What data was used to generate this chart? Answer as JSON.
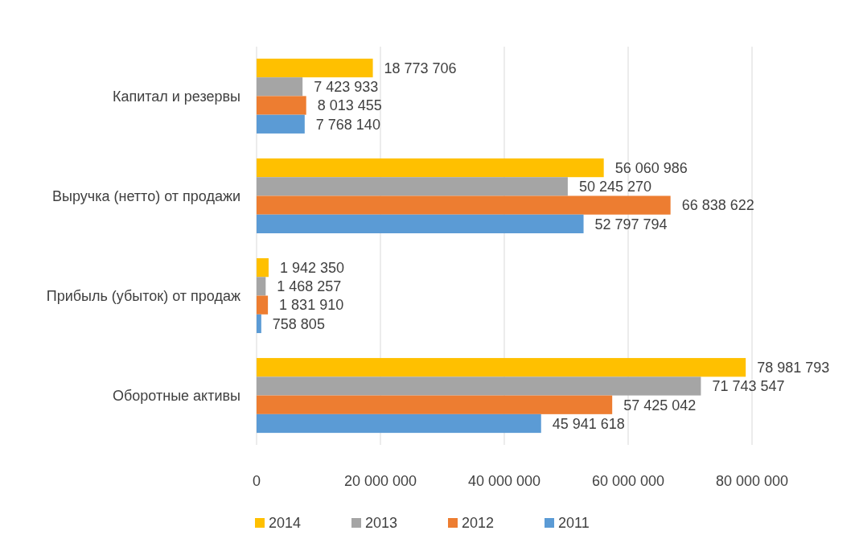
{
  "chart_data": {
    "type": "bar",
    "orientation": "horizontal",
    "categories": [
      "Капитал и резервы",
      "Выручка (нетто) от продажи",
      "Прибыль (убыток) от продаж",
      "Оборотные активы"
    ],
    "series": [
      {
        "name": "2014",
        "color": "#ffc000",
        "values": [
          18773706,
          56060986,
          1942350,
          78981793
        ],
        "value_labels": [
          "18 773 706",
          "56 060 986",
          "1 942 350",
          "78 981 793"
        ]
      },
      {
        "name": "2013",
        "color": "#a5a5a5",
        "values": [
          7423933,
          50245270,
          1468257,
          71743547
        ],
        "value_labels": [
          "7 423 933",
          "50 245 270",
          "1 468 257",
          "71 743 547"
        ]
      },
      {
        "name": "2012",
        "color": "#ed7d31",
        "values": [
          8013455,
          66838622,
          1831910,
          57425042
        ],
        "value_labels": [
          "8 013 455",
          "66 838 622",
          "1 831 910",
          "57 425 042"
        ]
      },
      {
        "name": "2011",
        "color": "#5b9bd5",
        "values": [
          7768140,
          52797794,
          758805,
          45941618
        ],
        "value_labels": [
          "7 768 140",
          "52 797 794",
          "758 805",
          "45 941 618"
        ]
      }
    ],
    "xlim": [
      0,
      80000000
    ],
    "xticks": [
      0,
      {
        "value": 20000000,
        "label": "20 000 000"
      },
      {
        "value": 40000000,
        "label": "40 000 000"
      },
      {
        "value": 60000000,
        "label": "60 000 000"
      },
      {
        "value": 80000000,
        "label": "80 000 000"
      }
    ],
    "grid": "x",
    "legend": "bottom"
  }
}
